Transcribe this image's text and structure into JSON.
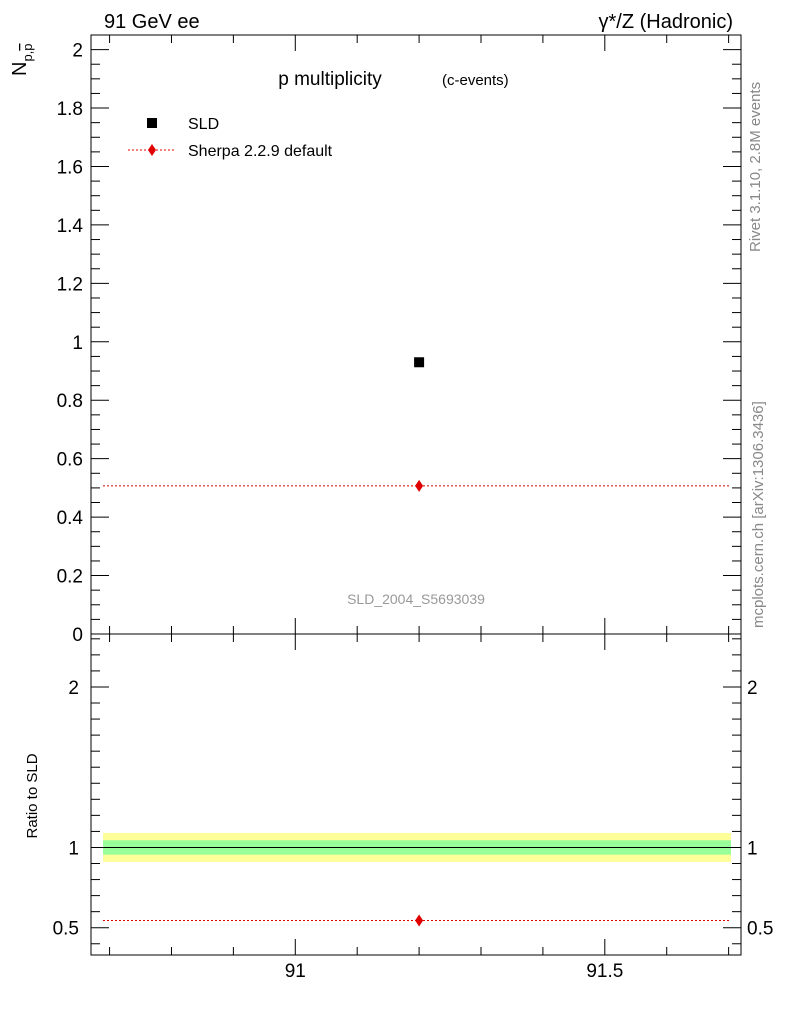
{
  "header": {
    "left": "91 GeV ee",
    "right": "γ*/Z (Hadronic)"
  },
  "side_labels": {
    "rivet": "Rivet 3.1.10,  2.8M events",
    "mcplots": "mcplots.cern.ch [arXiv:1306.3436]"
  },
  "chart_data": [
    {
      "type": "scatter",
      "title": "p multiplicity",
      "subtitle": "(c-events)",
      "ylabel": "N_{p,p̄}",
      "xlim": [
        90.67,
        91.72
      ],
      "ylim": [
        0,
        2.05
      ],
      "yticks": [
        0,
        0.2,
        0.4,
        0.6,
        0.8,
        1,
        1.2,
        1.4,
        1.6,
        1.8,
        2
      ],
      "ytick_labels": [
        "0",
        "0.2",
        "0.4",
        "0.6",
        "0.8",
        "1",
        "1.2",
        "1.4",
        "1.6",
        "1.8",
        "2"
      ],
      "watermark": "SLD_2004_S5693039",
      "legend_position": "top-left",
      "series": [
        {
          "name": "SLD",
          "color": "#000000",
          "marker": "square",
          "x": [
            91.2
          ],
          "y": [
            0.93
          ]
        },
        {
          "name": "Sherpa 2.2.9 default",
          "color": "#e00000",
          "marker": "diamond",
          "line": "dotted",
          "x": [
            91.2
          ],
          "y": [
            0.507
          ],
          "line_x": [
            90.67,
            91.72
          ]
        }
      ]
    },
    {
      "type": "scatter",
      "ylabel": "Ratio to SLD",
      "xlim": [
        90.67,
        91.72
      ],
      "ylim": [
        0.33,
        2.33
      ],
      "yticks": [
        0.5,
        1,
        2
      ],
      "ytick_labels": [
        "0.5",
        "1",
        "2"
      ],
      "xticks": [
        91,
        91.5
      ],
      "xtick_labels": [
        "91",
        "91.5"
      ],
      "bands": [
        {
          "color": "#ffff99",
          "y": [
            0.91,
            1.09
          ]
        },
        {
          "color": "#99ff99",
          "y": [
            0.955,
            1.045
          ]
        }
      ],
      "reference_line": 1.0,
      "series": [
        {
          "name": "Sherpa 2.2.9 default",
          "color": "#e00000",
          "marker": "diamond",
          "line": "dotted",
          "x": [
            91.2
          ],
          "y": [
            0.545
          ],
          "line_x": [
            90.67,
            91.72
          ]
        }
      ]
    }
  ]
}
